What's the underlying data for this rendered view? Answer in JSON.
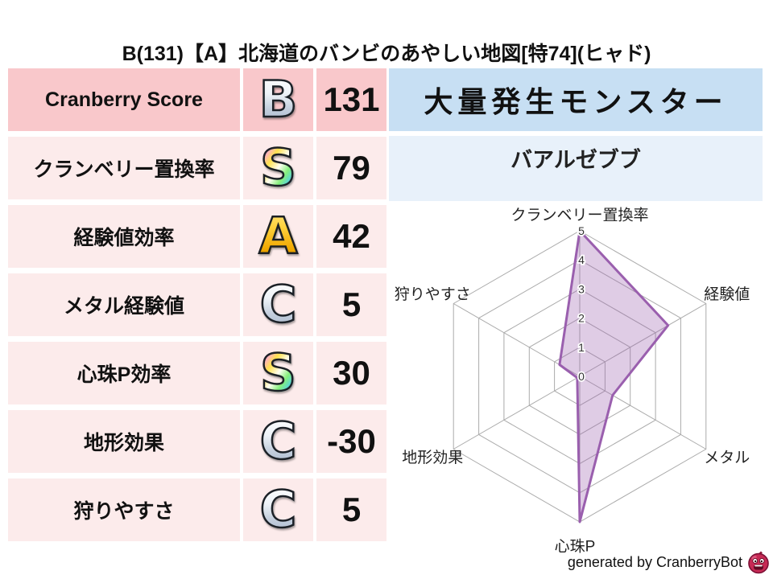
{
  "title": "B(131)【A】北海道のバンビのあやしい地図[特74](ヒャド)",
  "stats": {
    "rows": [
      {
        "label": "Cranberry Score",
        "grade": "B",
        "value": "131"
      },
      {
        "label": "クランベリー置換率",
        "grade": "S",
        "value": "79"
      },
      {
        "label": "経験値効率",
        "grade": "A",
        "value": "42"
      },
      {
        "label": "メタル経験値",
        "grade": "C",
        "value": "5"
      },
      {
        "label": "心珠P効率",
        "grade": "S",
        "value": "30"
      },
      {
        "label": "地形効果",
        "grade": "C",
        "value": "-30"
      },
      {
        "label": "狩りやすさ",
        "grade": "C",
        "value": "5"
      }
    ]
  },
  "monster_panel": {
    "header": "大量発生モンスター",
    "monster": "バアルゼブブ"
  },
  "chart_data": {
    "type": "radar",
    "categories": [
      "クランベリー置換率",
      "経験値",
      "メタル",
      "心珠P",
      "地形効果",
      "狩りやすさ"
    ],
    "values": [
      5,
      3.5,
      1.3,
      5,
      0.1,
      0.8
    ],
    "ticks": [
      "0",
      "1",
      "2",
      "3",
      "4",
      "5"
    ],
    "range": [
      0,
      5
    ],
    "grid": true,
    "legend": "none",
    "line_color": "#9a5fae",
    "fill_color": "rgba(154,95,174,0.32)",
    "grid_color": "#ababab"
  },
  "footer": {
    "credit": "generated by CranberryBot",
    "icon": "cranberry-bot-icon"
  },
  "colors": {
    "highlight_row_bg": "#f9c8cb",
    "row_bg": "#fcebeb",
    "monster_header_bg": "#c7dff3",
    "monster_sub_bg": "#e8f1fa",
    "grade_silver": "#c3cedd",
    "grade_gold": "#f0a800",
    "grade_rainbow": "multicolor",
    "radar_line": "#9a5fae"
  }
}
